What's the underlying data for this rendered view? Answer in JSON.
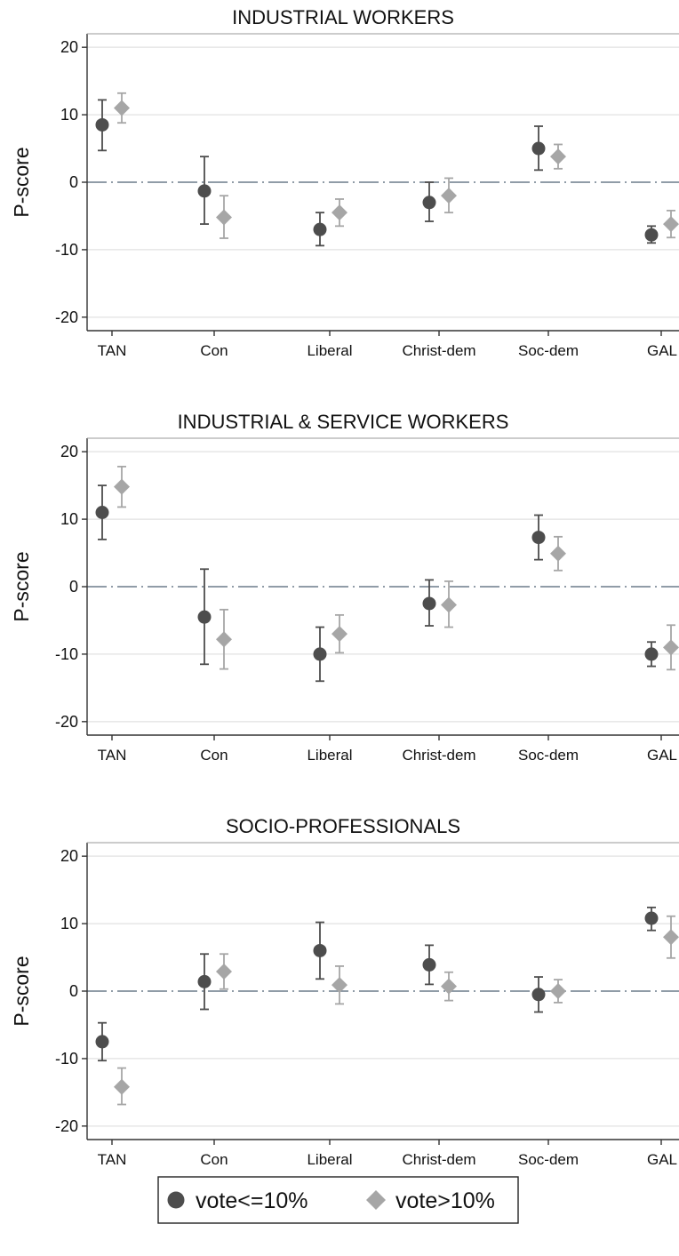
{
  "colors": {
    "low_vote": "#4d4d4d",
    "high_vote": "#a6a6a6",
    "grid": "#e6e6e6",
    "axis": "#333333",
    "zero_line": "#6b7b8a"
  },
  "legend": {
    "placement": "bottom",
    "items": [
      {
        "label": "vote<=10%",
        "marker": "circle",
        "color": "#4d4d4d"
      },
      {
        "label": "vote>10%",
        "marker": "diamond",
        "color": "#a6a6a6"
      }
    ]
  },
  "chart_data": [
    {
      "type": "scatter",
      "title": "INDUSTRIAL WORKERS",
      "ylabel": "P-score",
      "xlabel": "",
      "ylim": [
        -22,
        22
      ],
      "yticks": [
        20,
        10,
        0,
        -10,
        -20
      ],
      "ytick_labels": [
        "20",
        "10",
        "0",
        "-10",
        "-20"
      ],
      "categories": [
        "TAN",
        "Con",
        "Liberal",
        "Christ-dem",
        "Soc-dem",
        "GAL"
      ],
      "grid": true,
      "reference_line": 0,
      "series": [
        {
          "name": "vote<=10%",
          "marker": "circle",
          "values": [
            8.5,
            -1.3,
            -7.0,
            -3.0,
            5.0,
            -7.8
          ],
          "ci_low": [
            4.7,
            -6.2,
            -9.4,
            -5.8,
            1.8,
            -9.0
          ],
          "ci_high": [
            12.2,
            3.8,
            -4.5,
            0.0,
            8.3,
            -6.5
          ]
        },
        {
          "name": "vote>10%",
          "marker": "diamond",
          "values": [
            11.0,
            -5.2,
            -4.5,
            -2.0,
            3.8,
            -6.2
          ],
          "ci_low": [
            8.8,
            -8.3,
            -6.5,
            -4.5,
            2.0,
            -8.2
          ],
          "ci_high": [
            13.2,
            -2.0,
            -2.5,
            0.6,
            5.6,
            -4.2
          ]
        }
      ]
    },
    {
      "type": "scatter",
      "title": "INDUSTRIAL & SERVICE WORKERS",
      "ylabel": "P-score",
      "xlabel": "",
      "ylim": [
        -22,
        22
      ],
      "yticks": [
        20,
        10,
        0,
        -10,
        -20
      ],
      "ytick_labels": [
        "20",
        "10",
        "0",
        "-10",
        "-20"
      ],
      "categories": [
        "TAN",
        "Con",
        "Liberal",
        "Christ-dem",
        "Soc-dem",
        "GAL"
      ],
      "grid": true,
      "reference_line": 0,
      "series": [
        {
          "name": "vote<=10%",
          "marker": "circle",
          "values": [
            11.0,
            -4.5,
            -10.0,
            -2.5,
            7.3,
            -10.0
          ],
          "ci_low": [
            7.0,
            -11.5,
            -14.0,
            -5.8,
            4.0,
            -11.8
          ],
          "ci_high": [
            15.0,
            2.6,
            -6.0,
            1.0,
            10.6,
            -8.2
          ]
        },
        {
          "name": "vote>10%",
          "marker": "diamond",
          "values": [
            14.8,
            -7.8,
            -7.0,
            -2.7,
            4.9,
            -9.0
          ],
          "ci_low": [
            11.8,
            -12.2,
            -9.8,
            -6.0,
            2.4,
            -12.3
          ],
          "ci_high": [
            17.8,
            -3.4,
            -4.2,
            0.8,
            7.4,
            -5.7
          ]
        }
      ]
    },
    {
      "type": "scatter",
      "title": "SOCIO-PROFESSIONALS",
      "ylabel": "P-score",
      "xlabel": "",
      "ylim": [
        -22,
        22
      ],
      "yticks": [
        20,
        10,
        0,
        -10,
        -20
      ],
      "ytick_labels": [
        "20",
        "10",
        "0",
        "-10",
        "-20"
      ],
      "categories": [
        "TAN",
        "Con",
        "Liberal",
        "Christ-dem",
        "Soc-dem",
        "GAL"
      ],
      "grid": true,
      "reference_line": 0,
      "series": [
        {
          "name": "vote<=10%",
          "marker": "circle",
          "values": [
            -7.5,
            1.4,
            6.0,
            3.9,
            -0.5,
            10.8
          ],
          "ci_low": [
            -10.3,
            -2.7,
            1.8,
            1.0,
            -3.1,
            9.0
          ],
          "ci_high": [
            -4.7,
            5.5,
            10.2,
            6.8,
            2.1,
            12.4
          ]
        },
        {
          "name": "vote>10%",
          "marker": "diamond",
          "values": [
            -14.2,
            2.9,
            0.9,
            0.7,
            0.0,
            8.0
          ],
          "ci_low": [
            -16.8,
            0.3,
            -1.9,
            -1.4,
            -1.7,
            4.9
          ],
          "ci_high": [
            -11.4,
            5.5,
            3.7,
            2.8,
            1.7,
            11.1
          ]
        }
      ]
    }
  ]
}
